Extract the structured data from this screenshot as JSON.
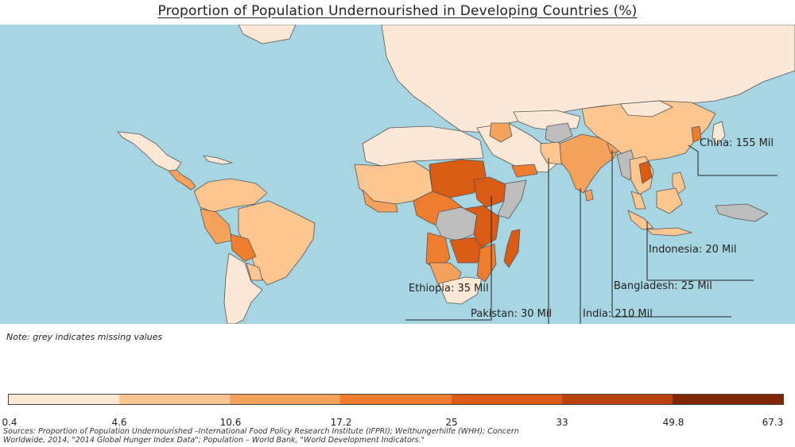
{
  "title": "Proportion of Population Undernourished in Developing Countries (%)",
  "colors": {
    "ocean": "#a8d5e2",
    "missing": "#bdbdbd",
    "bins": [
      "#fde8d6",
      "#fbc68f",
      "#f7a25c",
      "#ee7d2e",
      "#da5b14",
      "#b8420a",
      "#7f2704"
    ]
  },
  "callouts": {
    "china": "China: 155 Mil",
    "indonesia": "Indonesia: 20 Mil",
    "bangladesh": "Bangladesh: 25 Mil",
    "ethiopia": "Ethiopia: 35 Mil",
    "pakistan": "Pakistan: 30 Mil",
    "india": "India: 210 Mil"
  },
  "note": "Note: grey indicates missing values",
  "legend": {
    "ticks": [
      "0.4",
      "4.6",
      "10.6",
      "17.2",
      "25",
      "33",
      "49.8",
      "67.3"
    ]
  },
  "source": "Sources: Proportion of Population Undernourished –International Food Policy Research Institute (IFPRI); Welthungerhilfe (WHH); Concern Worldwide, 2014, \"2014 Global Hunger Index Data\"; Population – World Bank, \"World Development Indicators.\""
}
